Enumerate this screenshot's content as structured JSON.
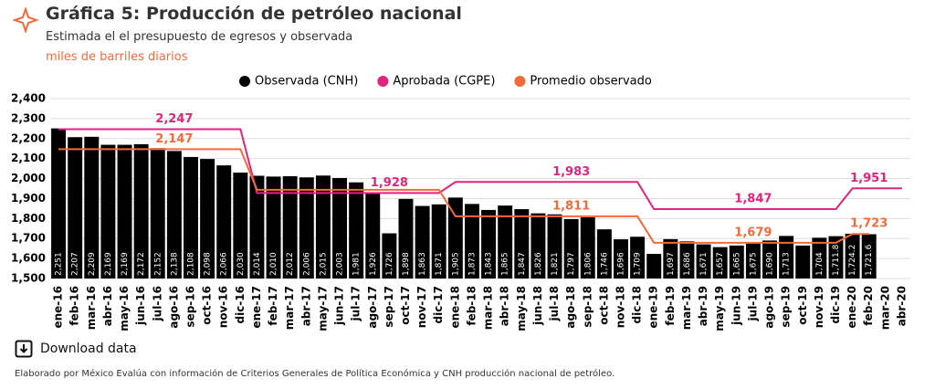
{
  "title": "Gráfica 5: Producción de petróleo nacional",
  "subtitle": "Estimada el el presupuesto de egresos y observada",
  "units": "miles de barriles diarios",
  "download": "Download data",
  "footer": "Elaborado por México Evalúa con información de Criterios Generales de Política Económica y CNH producción nacional de petróleo.",
  "chart_data": {
    "type": "bar",
    "categories": [
      "ene-16",
      "feb-16",
      "mar-16",
      "abr-16",
      "may-16",
      "jun-16",
      "jul-16",
      "ago-16",
      "sep-16",
      "oct-16",
      "nov-16",
      "dic-16",
      "ene-17",
      "feb-17",
      "mar-17",
      "abr-17",
      "may-17",
      "jun-17",
      "jul-17",
      "ago-17",
      "sep-17",
      "oct-17",
      "nov-17",
      "dic-17",
      "ene-18",
      "feb-18",
      "mar-18",
      "abr-18",
      "may-18",
      "jun-18",
      "jul-18",
      "ago-18",
      "sep-18",
      "oct-18",
      "nov-18",
      "dic-18",
      "ene-19",
      "feb-19",
      "mar-19",
      "abr-19",
      "may-19",
      "jun-19",
      "jul-19",
      "ago-19",
      "sep-19",
      "oct-19",
      "nov-19",
      "dic-19",
      "ene-20",
      "feb-20",
      "mar-20",
      "abr-20"
    ],
    "series": [
      {
        "name": "Observada (CNH)",
        "type": "bar",
        "color": "#000000",
        "values": [
          2251,
          2207,
          2209,
          2169,
          2169,
          2172,
          2152,
          2138,
          2108,
          2098,
          2066,
          2030,
          2014,
          2010,
          2012,
          2006,
          2015,
          2003,
          1981,
          1926,
          1726,
          1898,
          1863,
          1871,
          1905,
          1873,
          1843,
          1865,
          1847,
          1826,
          1821,
          1797,
          1806,
          1746,
          1696,
          1709,
          1623,
          1697,
          1686,
          1671,
          1657,
          1665,
          1675,
          1690,
          1713,
          1665,
          1704,
          1711.8,
          1724.2,
          1721.6,
          null,
          null
        ],
        "value_labels": [
          "2,251",
          "2,207",
          "2,209",
          "2,169",
          "2,169",
          "2,172",
          "2,152",
          "2,138",
          "2,108",
          "2,098",
          "2,066",
          "2,030",
          "2,014",
          "2,010",
          "2,012",
          "2,006",
          "2,015",
          "2,003",
          "1,981",
          "1,926",
          "1,726",
          "1,898",
          "1,863",
          "1,871",
          "1,905",
          "1,873",
          "1,843",
          "1,865",
          "1,847",
          "1,826",
          "1,821",
          "1,797",
          "1,806",
          "1,746",
          "1,696",
          "1,709",
          null,
          "1,697",
          "1,686",
          "1,671",
          "1,657",
          "1,665",
          "1,675",
          "1,690",
          "1,713",
          null,
          "1,704",
          "1,711.8",
          "1,724.2",
          "1,721.6",
          null,
          null
        ]
      },
      {
        "name": "Aprobada (CGPE)",
        "type": "line",
        "color": "#e0257a",
        "values": [
          2247,
          2247,
          2247,
          2247,
          2247,
          2247,
          2247,
          2247,
          2247,
          2247,
          2247,
          2247,
          1928,
          1928,
          1928,
          1928,
          1928,
          1928,
          1928,
          1928,
          1928,
          1928,
          1928,
          1928,
          1983,
          1983,
          1983,
          1983,
          1983,
          1983,
          1983,
          1983,
          1983,
          1983,
          1983,
          1983,
          1847,
          1847,
          1847,
          1847,
          1847,
          1847,
          1847,
          1847,
          1847,
          1847,
          1847,
          1847,
          1951,
          1951,
          1951,
          1951
        ],
        "value_labels": [
          null,
          null,
          null,
          null,
          null,
          null,
          null,
          "2,247",
          null,
          null,
          null,
          null,
          null,
          null,
          null,
          null,
          null,
          null,
          null,
          null,
          "1,928",
          null,
          null,
          null,
          null,
          null,
          null,
          null,
          null,
          null,
          null,
          "1,983",
          null,
          null,
          null,
          null,
          null,
          null,
          null,
          null,
          null,
          null,
          "1,847",
          null,
          null,
          null,
          null,
          null,
          null,
          "1,951",
          null,
          null
        ]
      },
      {
        "name": "Promedio observado",
        "type": "line",
        "color": "#f26b3a",
        "values": [
          2147,
          2147,
          2147,
          2147,
          2147,
          2147,
          2147,
          2147,
          2147,
          2147,
          2147,
          2147,
          1944,
          1944,
          1944,
          1944,
          1944,
          1944,
          1944,
          1944,
          1944,
          1944,
          1944,
          1944,
          1811,
          1811,
          1811,
          1811,
          1811,
          1811,
          1811,
          1811,
          1811,
          1811,
          1811,
          1811,
          1679,
          1679,
          1679,
          1679,
          1679,
          1679,
          1679,
          1679,
          1679,
          1679,
          1679,
          1679,
          1723,
          1723,
          null,
          null
        ],
        "value_labels": [
          null,
          null,
          null,
          null,
          null,
          null,
          null,
          "2,147",
          null,
          null,
          null,
          null,
          null,
          null,
          null,
          null,
          null,
          null,
          null,
          null,
          null,
          null,
          null,
          null,
          null,
          null,
          null,
          null,
          null,
          null,
          null,
          "1,811",
          null,
          null,
          null,
          null,
          null,
          null,
          null,
          null,
          null,
          null,
          "1,679",
          null,
          null,
          null,
          null,
          null,
          null,
          "1,723",
          null,
          null
        ]
      }
    ],
    "ylim": [
      1500,
      2400
    ],
    "yticks": [
      {
        "value": 1500,
        "label": "1,500"
      },
      {
        "value": 1600,
        "label": "1,600"
      },
      {
        "value": 1700,
        "label": "1,700"
      },
      {
        "value": 1800,
        "label": "1,800"
      },
      {
        "value": 1900,
        "label": "1,900"
      },
      {
        "value": 2000,
        "label": "2,000"
      },
      {
        "value": 2100,
        "label": "2,100"
      },
      {
        "value": 2200,
        "label": "2,200"
      },
      {
        "value": 2300,
        "label": "2,300"
      },
      {
        "value": 2400,
        "label": "2,400"
      }
    ],
    "grid": true,
    "legend": "top"
  }
}
